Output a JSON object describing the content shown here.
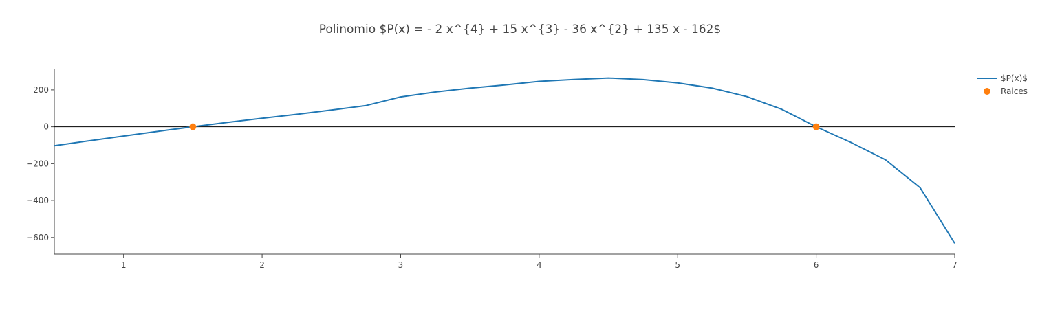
{
  "chart_data": {
    "type": "line",
    "title": "Polinomio $P(x) = - 2 x^{4} + 15 x^{3} - 36 x^{2} + 135 x - 162$",
    "xlabel": "",
    "ylabel": "",
    "xlim": [
      0.5,
      7
    ],
    "ylim": [
      -690,
      315
    ],
    "xticks": [
      1,
      2,
      3,
      4,
      5,
      6,
      7
    ],
    "yticks": [
      200,
      0,
      -200,
      -400,
      -600
    ],
    "ytick_labels": [
      "200",
      "0",
      "−200",
      "−400",
      "−600"
    ],
    "grid": false,
    "zero_line": true,
    "legend_position": "top-right",
    "series": [
      {
        "name": "$P(x)$",
        "kind": "line",
        "color": "#1f77b4",
        "x": [
          0.5,
          0.75,
          1.0,
          1.25,
          1.5,
          1.75,
          2.0,
          2.25,
          2.5,
          2.75,
          3.0,
          3.25,
          3.5,
          3.75,
          4.0,
          4.25,
          4.5,
          4.75,
          5.0,
          5.25,
          5.5,
          5.75,
          6.0,
          6.25,
          6.5,
          6.75,
          7.0
        ],
        "y": [
          -102.6,
          -76.1,
          -50.0,
          -24.6,
          0.0,
          23.5,
          46.0,
          67.6,
          90.4,
          115.1,
          162.0,
          188.6,
          209.3,
          226.3,
          246.0,
          256.1,
          264.4,
          255.8,
          238.0,
          209.3,
          163.4,
          95.2,
          0.0,
          -84.6,
          -178.7,
          -330.4,
          -632.0
        ]
      },
      {
        "name": "Raices",
        "kind": "markers",
        "color": "#ff7f0e",
        "x": [
          1.5,
          6
        ],
        "y": [
          0,
          0
        ]
      }
    ]
  }
}
